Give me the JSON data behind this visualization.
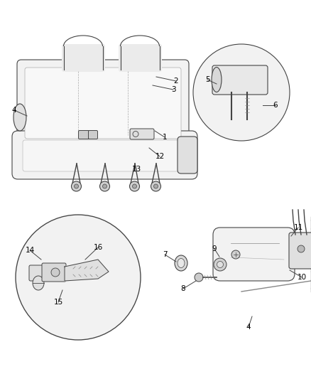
{
  "background_color": "#ffffff",
  "line_color": "#444444",
  "fill_light": "#f2f2f2",
  "fill_mid": "#e0e0e0",
  "fill_dark": "#cccccc",
  "fig_width": 4.38,
  "fig_height": 5.33,
  "dpi": 100,
  "font_size": 7.5
}
